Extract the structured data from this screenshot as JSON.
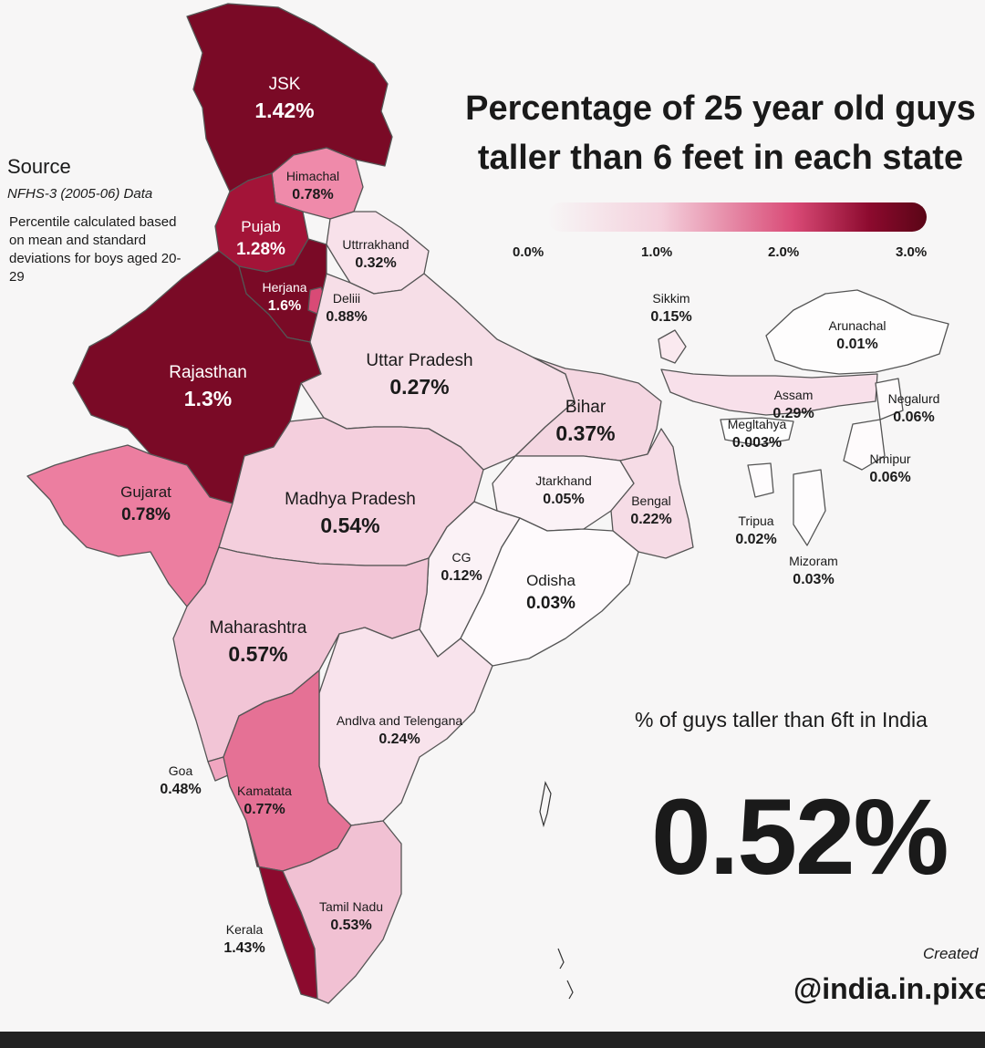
{
  "title_lines": [
    "Percentage of 25 year old guys",
    "taller than 6 feet in each state"
  ],
  "legend": {
    "ticks": [
      "0.0%",
      "1.0%",
      "2.0%",
      "3.0%"
    ],
    "min": 0.0,
    "max": 3.0,
    "colors": [
      "#f7f6f6",
      "#f4d0dc",
      "#d94a76",
      "#8c0a2e",
      "#5a0516"
    ]
  },
  "source": {
    "heading": "Source",
    "dataset": "NFHS-3 (2005-06) Data",
    "note": "Percentile calculated based on mean and standard deviations for boys aged 20-29"
  },
  "states": [
    {
      "name": "JSK",
      "value": "1.42%"
    },
    {
      "name": "Himachal",
      "value": "0.78%"
    },
    {
      "name": "Pujab",
      "value": "1.28%"
    },
    {
      "name": "Uttrrakhand",
      "value": "0.32%"
    },
    {
      "name": "Herjana",
      "value": "1.6%"
    },
    {
      "name": "Deliii",
      "value": "0.88%"
    },
    {
      "name": "Rajasthan",
      "value": "1.3%"
    },
    {
      "name": "Uttar Pradesh",
      "value": "0.27%"
    },
    {
      "name": "Sikkim",
      "value": "0.15%"
    },
    {
      "name": "Arunachal",
      "value": "0.01%"
    },
    {
      "name": "Bihar",
      "value": "0.37%"
    },
    {
      "name": "Assam",
      "value": "0.29%"
    },
    {
      "name": "Negalurd",
      "value": "0.06%"
    },
    {
      "name": "Megltahya",
      "value": "0.003%"
    },
    {
      "name": "Nmipur",
      "value": "0.06%"
    },
    {
      "name": "Gujarat",
      "value": "0.78%"
    },
    {
      "name": "Madhya Pradesh",
      "value": "0.54%"
    },
    {
      "name": "Jtarkhand",
      "value": "0.05%"
    },
    {
      "name": "Bengal",
      "value": "0.22%"
    },
    {
      "name": "Tripua",
      "value": "0.02%"
    },
    {
      "name": "Mizoram",
      "value": "0.03%"
    },
    {
      "name": "CG",
      "value": "0.12%"
    },
    {
      "name": "Odisha",
      "value": "0.03%"
    },
    {
      "name": "Maharashtra",
      "value": "0.57%"
    },
    {
      "name": "Andlva and Telengana",
      "value": "0.24%"
    },
    {
      "name": "Goa",
      "value": "0.48%"
    },
    {
      "name": "Kamatata",
      "value": "0.77%"
    },
    {
      "name": "Tamil Nadu",
      "value": "0.53%"
    },
    {
      "name": "Kerala",
      "value": "1.43%"
    }
  ],
  "national": {
    "label": "% of guys taller than 6ft in India",
    "value": "0.52%"
  },
  "credit": {
    "created": "Created",
    "handle": "@india.in.pixe"
  }
}
